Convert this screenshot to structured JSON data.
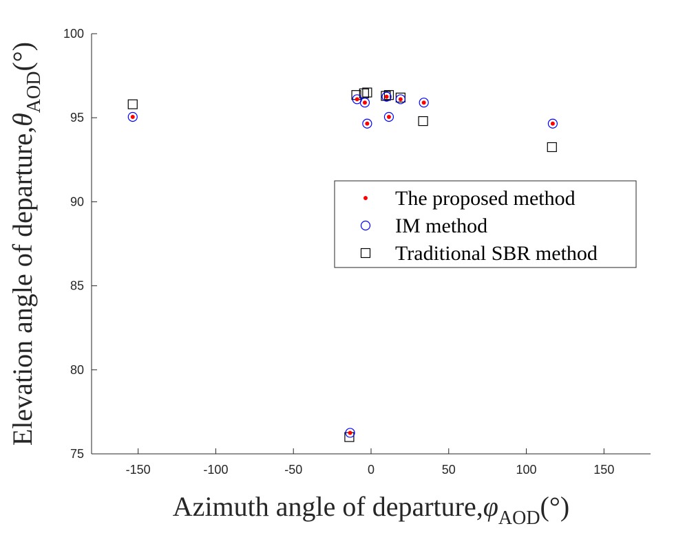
{
  "chart_data": {
    "type": "scatter",
    "title": "",
    "xlabel": {
      "main": "Azimuth angle of departure,",
      "symbol": "φ",
      "subscript": "AOD",
      "unit": "(°)"
    },
    "ylabel": {
      "main": "Elevation angle of departure,",
      "symbol": "θ",
      "subscript": "AOD",
      "unit": "(°)"
    },
    "xlim": [
      -180,
      180
    ],
    "ylim": [
      75,
      100
    ],
    "xticks": [
      -150,
      -100,
      -50,
      0,
      50,
      100,
      150
    ],
    "xtick_labels": [
      "-150",
      "-100",
      "-50",
      "0",
      "50",
      "100",
      "150"
    ],
    "yticks": [
      75,
      80,
      85,
      90,
      95,
      100
    ],
    "ytick_labels": [
      "75",
      "80",
      "85",
      "90",
      "95",
      "100"
    ],
    "grid": false,
    "legend_position": "right",
    "series": [
      {
        "name": "The proposed method",
        "marker": "dot",
        "color": "#ff0000",
        "points": [
          {
            "x": -153.5,
            "y": 95.05
          },
          {
            "x": -9,
            "y": 96.1
          },
          {
            "x": -4,
            "y": 95.9
          },
          {
            "x": -2.5,
            "y": 94.65
          },
          {
            "x": 10,
            "y": 96.25
          },
          {
            "x": 11.5,
            "y": 95.05
          },
          {
            "x": 19,
            "y": 96.1
          },
          {
            "x": 34,
            "y": 95.9
          },
          {
            "x": 117,
            "y": 94.65
          },
          {
            "x": -13.5,
            "y": 76.25
          }
        ]
      },
      {
        "name": "IM method",
        "marker": "circle",
        "color": "#0000ff",
        "points": [
          {
            "x": -153.5,
            "y": 95.05
          },
          {
            "x": -9,
            "y": 96.1
          },
          {
            "x": -4,
            "y": 95.9
          },
          {
            "x": -2.5,
            "y": 94.65
          },
          {
            "x": 10,
            "y": 96.25
          },
          {
            "x": 11.5,
            "y": 95.05
          },
          {
            "x": 19,
            "y": 96.1
          },
          {
            "x": 34,
            "y": 95.9
          },
          {
            "x": 117,
            "y": 94.65
          },
          {
            "x": -13.5,
            "y": 76.25
          }
        ]
      },
      {
        "name": "Traditional SBR method",
        "marker": "square",
        "color": "#000000",
        "points": [
          {
            "x": -153.5,
            "y": 95.8
          },
          {
            "x": -9.5,
            "y": 96.35
          },
          {
            "x": -4.5,
            "y": 96.45
          },
          {
            "x": -2.5,
            "y": 96.5
          },
          {
            "x": 9.5,
            "y": 96.3
          },
          {
            "x": 11.5,
            "y": 96.35
          },
          {
            "x": 19,
            "y": 96.2
          },
          {
            "x": 33.5,
            "y": 94.8
          },
          {
            "x": 116.5,
            "y": 93.25
          },
          {
            "x": -14,
            "y": 76.0
          }
        ]
      }
    ]
  }
}
